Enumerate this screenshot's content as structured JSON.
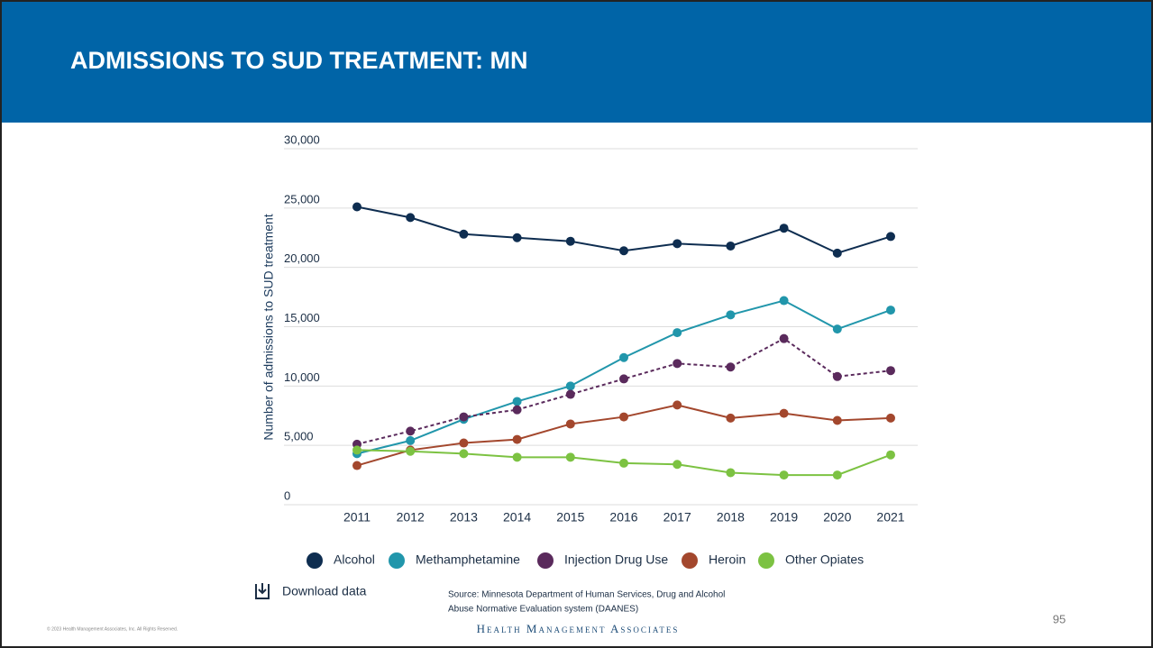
{
  "slide": {
    "title": "ADMISSIONS TO SUD TREATMENT: MN",
    "download": "Download data",
    "source": [
      "Source: Minnesota Department of Human Services, Drug and Alcohol",
      "Abuse Normative Evaluation system (DAANES)"
    ],
    "logo": "Health Management Associates",
    "copyright": "© 2023 Health Management Associates, Inc. All Rights Reserved.",
    "page_number": "95"
  },
  "chart_data": {
    "type": "line",
    "y_label": "Number of admissions to SUD treatment",
    "categories": [
      "2011",
      "2012",
      "2013",
      "2014",
      "2015",
      "2016",
      "2017",
      "2018",
      "2019",
      "2020",
      "2021"
    ],
    "ylim": [
      0,
      30000
    ],
    "yticks": [
      0,
      {
        "value": 5000,
        "label": "5,000"
      },
      {
        "value": 10000,
        "label": "10,000"
      },
      {
        "value": 15000,
        "label": "15,000"
      },
      {
        "value": 20000,
        "label": "20,000"
      },
      {
        "value": 25000,
        "label": "25,000"
      },
      {
        "value": 30000,
        "label": "30,000"
      }
    ],
    "grid": true,
    "series": [
      {
        "name": "Alcohol",
        "color": "#0e2d50",
        "values": [
          25100,
          24200,
          22800,
          22500,
          22200,
          21400,
          22000,
          21800,
          23300,
          21200,
          22600
        ]
      },
      {
        "name": "Methamphetamine",
        "color": "#2196ab",
        "values": [
          4300,
          5400,
          7200,
          8700,
          10000,
          12400,
          14500,
          16000,
          17200,
          14800,
          16400
        ]
      },
      {
        "name": "Injection Drug Use",
        "color": "#5a2a5c",
        "dashed": true,
        "values": [
          5100,
          6200,
          7400,
          8000,
          9300,
          10600,
          11900,
          11600,
          14000,
          10800,
          11300
        ]
      },
      {
        "name": "Heroin",
        "color": "#a3472d",
        "values": [
          3300,
          4600,
          5200,
          5500,
          6800,
          7400,
          8400,
          7300,
          7700,
          7100,
          7300
        ]
      },
      {
        "name": "Other Opiates",
        "color": "#7cc242",
        "values": [
          4600,
          4500,
          4300,
          4000,
          4000,
          3500,
          3400,
          2700,
          2500,
          2500,
          4200
        ]
      }
    ]
  }
}
